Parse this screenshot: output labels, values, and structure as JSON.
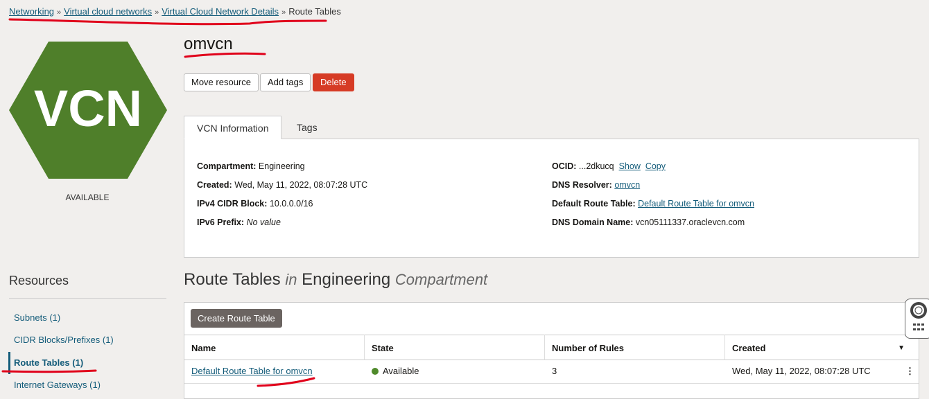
{
  "breadcrumb": [
    "Networking",
    "Virtual cloud networks",
    "Virtual Cloud Network Details",
    "Route Tables"
  ],
  "title": "omvcn",
  "actions": {
    "move": "Move resource",
    "tags": "Add tags",
    "delete": "Delete"
  },
  "logo": {
    "text": "VCN",
    "color": "#4f7f2a"
  },
  "status": "AVAILABLE",
  "tabs": [
    "VCN Information",
    "Tags"
  ],
  "info": {
    "compartment_label": "Compartment:",
    "compartment": "Engineering",
    "created_label": "Created:",
    "created": "Wed, May 11, 2022, 08:07:28 UTC",
    "cidr_label": "IPv4 CIDR Block:",
    "cidr": "10.0.0.0/16",
    "ipv6_label": "IPv6 Prefix:",
    "ipv6": "No value",
    "ocid_label": "OCID:",
    "ocid": "...2dkucq",
    "show": "Show",
    "copy": "Copy",
    "dns_label": "DNS Resolver:",
    "dns": "omvcn",
    "rt_label": "Default Route Table:",
    "rt": "Default Route Table for omvcn",
    "domain_label": "DNS Domain Name:",
    "domain": "vcn05111337.oraclevcn.com"
  },
  "resources": {
    "heading": "Resources",
    "items": [
      "Subnets (1)",
      "CIDR Blocks/Prefixes (1)",
      "Route Tables (1)",
      "Internet Gateways (1)"
    ]
  },
  "section": {
    "t1": "Route Tables",
    "in": "in",
    "t2": "Engineering",
    "t3": "Compartment"
  },
  "create_button": "Create Route Table",
  "table": {
    "headers": [
      "Name",
      "State",
      "Number of Rules",
      "Created"
    ],
    "rows": [
      {
        "name": "Default Route Table for omvcn",
        "state": "Available",
        "rules": "3",
        "created": "Wed, May 11, 2022, 08:07:28 UTC"
      }
    ]
  },
  "colors": {
    "link": "#145c7a",
    "danger": "#d63b25",
    "annotation": "#e0001a",
    "available": "#4f8a2b"
  }
}
